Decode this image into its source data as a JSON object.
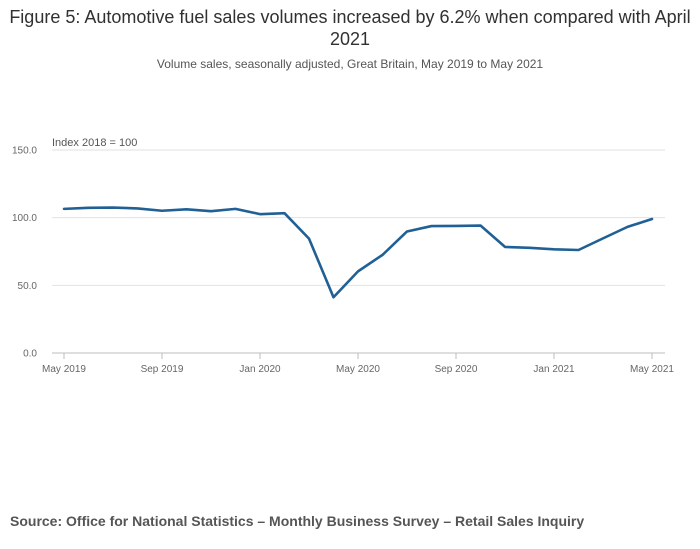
{
  "chart_data": {
    "type": "line",
    "title": "Figure 5: Automotive fuel sales volumes increased by 6.2% when compared with April 2021",
    "subtitle": "Volume sales, seasonally adjusted, Great Britain, May 2019 to May 2021",
    "ylabel": "Index 2018 = 100",
    "xlabel": "",
    "ylim": [
      0,
      150
    ],
    "yticks": [
      "0.0",
      "50.0",
      "100.0",
      "150.0"
    ],
    "ytick_values": [
      0,
      50,
      100,
      150
    ],
    "xtick_labels": [
      "May 2019",
      "Sep 2019",
      "Jan 2020",
      "May 2020",
      "Sep 2020",
      "Jan 2021",
      "May 2021"
    ],
    "xtick_indices": [
      0,
      4,
      8,
      12,
      16,
      20,
      24
    ],
    "categories": [
      "May 2019",
      "Jun 2019",
      "Jul 2019",
      "Aug 2019",
      "Sep 2019",
      "Oct 2019",
      "Nov 2019",
      "Dec 2019",
      "Jan 2020",
      "Feb 2020",
      "Mar 2020",
      "Apr 2020",
      "May 2020",
      "Jun 2020",
      "Jul 2020",
      "Aug 2020",
      "Sep 2020",
      "Oct 2020",
      "Nov 2020",
      "Dec 2020",
      "Jan 2021",
      "Feb 2021",
      "Mar 2021",
      "Apr 2021",
      "May 2021"
    ],
    "series": [
      {
        "name": "Automotive fuel",
        "color": "#206095",
        "values": [
          106.5,
          107.3,
          107.5,
          106.8,
          105.1,
          106.2,
          104.8,
          106.5,
          102.6,
          103.3,
          84.5,
          41.2,
          60.3,
          72.5,
          89.8,
          93.8,
          93.9,
          94.2,
          78.4,
          77.7,
          76.6,
          76.1,
          84.7,
          93.2,
          99.0
        ]
      }
    ],
    "grid": true
  },
  "footer": {
    "source": "Source: Office for National Statistics – Monthly Business Survey – Retail Sales Inquiry"
  }
}
